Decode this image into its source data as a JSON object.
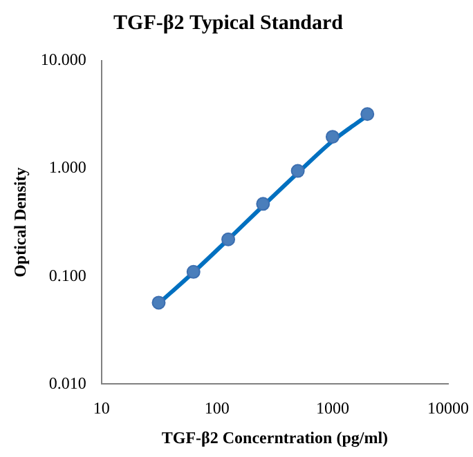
{
  "chart_data": {
    "type": "scatter",
    "title": "TGF-β2 Typical Standard",
    "xlabel": "TGF-β2 Concerntration (pg/ml)",
    "ylabel": "Optical Density",
    "log": "xy",
    "grid": false,
    "legend": false,
    "xlim": [
      10,
      10000
    ],
    "xticks": [
      10,
      100,
      1000,
      10000
    ],
    "ylim": [
      0.01,
      10
    ],
    "yticks": [
      {
        "value": 0.01,
        "label": "0.010"
      },
      {
        "value": 0.1,
        "label": "0.100"
      },
      {
        "value": 1,
        "label": "1.000"
      },
      {
        "value": 10,
        "label": "10.000"
      }
    ],
    "series": [
      {
        "type": "line",
        "color": "#0070c0",
        "marker": "none",
        "line_style": "solid",
        "x": [
          31.25,
          62.5,
          125,
          250,
          500,
          1000,
          2000
        ],
        "values": [
          0.056,
          0.109,
          0.22,
          0.45,
          0.91,
          1.8,
          3.1
        ]
      },
      {
        "type": "scatter",
        "color": "#4a7ebb",
        "marker": "circle",
        "x": [
          31.25,
          62.5,
          125,
          250,
          500,
          1000,
          2000
        ],
        "values": [
          0.057,
          0.11,
          0.22,
          0.47,
          0.95,
          1.97,
          3.2
        ]
      }
    ]
  }
}
